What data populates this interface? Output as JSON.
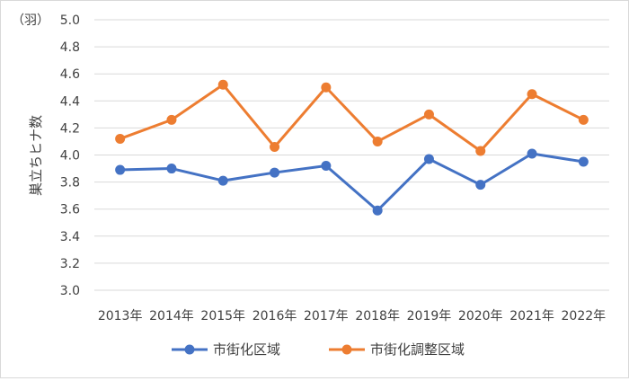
{
  "chart_data": {
    "type": "line",
    "unit_label": "（羽）",
    "ylabel": "巣立ちヒナ数",
    "xlabel": "",
    "categories": [
      "2013年",
      "2014年",
      "2015年",
      "2016年",
      "2017年",
      "2018年",
      "2019年",
      "2020年",
      "2021年",
      "2022年"
    ],
    "ylim": [
      3.0,
      5.0
    ],
    "yticks": [
      "3.0",
      "3.2",
      "3.4",
      "3.6",
      "3.8",
      "4.0",
      "4.2",
      "4.4",
      "4.6",
      "4.8",
      "5.0"
    ],
    "grid": true,
    "legend_position": "bottom",
    "series": [
      {
        "name": "市街化区域",
        "color": "#4472c4",
        "values": [
          3.89,
          3.9,
          3.81,
          3.87,
          3.92,
          3.59,
          3.97,
          3.78,
          4.01,
          3.95
        ]
      },
      {
        "name": "市街化調整区域",
        "color": "#ed7d31",
        "values": [
          4.12,
          4.26,
          4.52,
          4.06,
          4.5,
          4.1,
          4.3,
          4.03,
          4.45,
          4.26
        ]
      }
    ]
  }
}
